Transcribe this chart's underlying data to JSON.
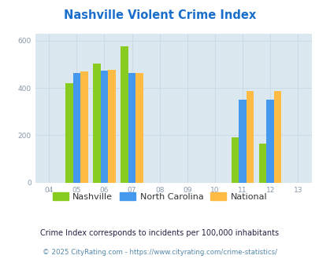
{
  "title": "Nashville Violent Crime Index",
  "title_color": "#1a6ecc",
  "plot_bg_color": "#dce8f0",
  "fig_bg_color": "#ffffff",
  "years": [
    2005,
    2006,
    2007,
    2011,
    2012
  ],
  "nashville": [
    420,
    505,
    575,
    190,
    165
  ],
  "north_carolina": [
    465,
    475,
    465,
    350,
    352
  ],
  "national": [
    470,
    477,
    463,
    387,
    387
  ],
  "nashville_color": "#88cc22",
  "nc_color": "#4499ee",
  "national_color": "#ffbb44",
  "xlim": [
    2003.5,
    2013.5
  ],
  "ylim": [
    0,
    630
  ],
  "yticks": [
    0,
    200,
    400,
    600
  ],
  "xticks": [
    2004,
    2005,
    2006,
    2007,
    2008,
    2009,
    2010,
    2011,
    2012,
    2013
  ],
  "xtick_labels": [
    "04",
    "05",
    "06",
    "07",
    "08",
    "09",
    "10",
    "11",
    "12",
    "13"
  ],
  "bar_width": 0.27,
  "legend_labels": [
    "Nashville",
    "North Carolina",
    "National"
  ],
  "footnote1": "Crime Index corresponds to incidents per 100,000 inhabitants",
  "footnote2": "© 2025 CityRating.com - https://www.cityrating.com/crime-statistics/",
  "footnote1_color": "#222244",
  "footnote2_color": "#5588aa",
  "grid_color": "#c8dde8",
  "tick_color": "#8899aa"
}
